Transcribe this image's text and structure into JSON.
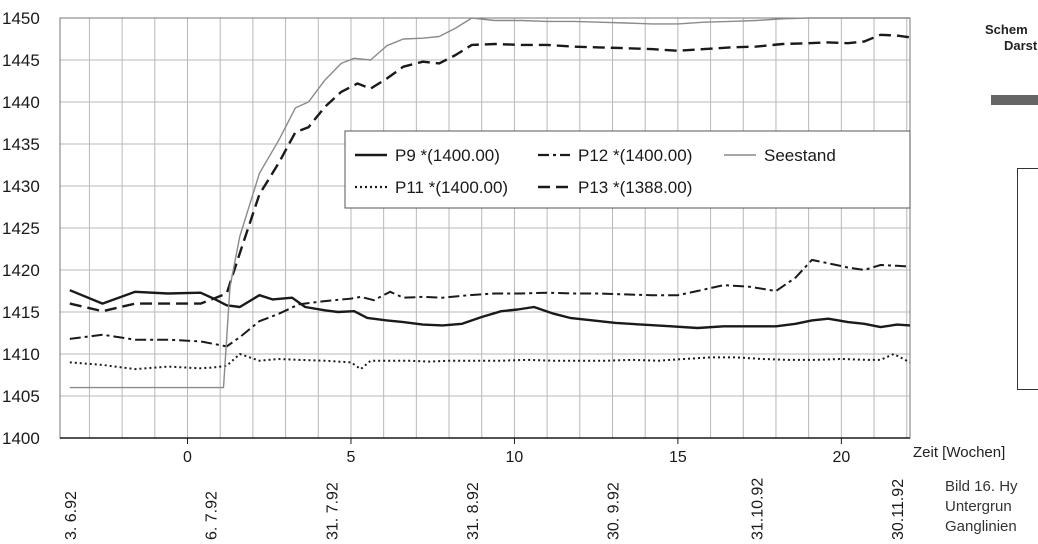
{
  "side_panel": {
    "heading_line1": "Schem",
    "heading_line2": "Darst",
    "time_axis_label": "Zeit [Wochen]",
    "caption_lines": [
      "Bild 16. Hy",
      "Untergrun",
      "Ganglinien"
    ]
  },
  "chart_data": {
    "type": "line",
    "title": "",
    "xlabel": "Zeit [Wochen]",
    "ylabel": "",
    "xlim": [
      -3.9,
      22.1
    ],
    "ylim": [
      1400,
      1450
    ],
    "x_ticks": [
      0,
      5,
      10,
      15,
      20
    ],
    "x_tick_labels": [
      "0",
      "5",
      "10",
      "15",
      "20"
    ],
    "y_ticks": [
      1400,
      1405,
      1410,
      1415,
      1420,
      1425,
      1430,
      1435,
      1440,
      1445,
      1450
    ],
    "y_tick_labels": [
      "1400",
      "1405",
      "1410",
      "1415",
      "1420",
      "1425",
      "1430",
      "1435",
      "1440",
      "1445",
      "1450"
    ],
    "grid": true,
    "legend_position": "center-right",
    "dates": [
      {
        "x": -3.6,
        "label": "3. 6.92"
      },
      {
        "x": 0.7,
        "label": "6. 7.92"
      },
      {
        "x": 4.4,
        "label": "31. 7.92"
      },
      {
        "x": 8.7,
        "label": "31. 8.92"
      },
      {
        "x": 13.0,
        "label": "30. 9.92"
      },
      {
        "x": 17.4,
        "label": "31.10.92"
      },
      {
        "x": 21.7,
        "label": "30.11.92"
      }
    ],
    "series": [
      {
        "name": "P9 *(1400.00)",
        "style": "solid",
        "color": "#1a1a1a",
        "x": [
          -3.6,
          -2.6,
          -1.6,
          -0.6,
          0.4,
          0.8,
          1.2,
          1.6,
          2.2,
          2.6,
          3.2,
          3.6,
          4.2,
          4.6,
          5.1,
          5.5,
          6.1,
          6.6,
          7.2,
          7.8,
          8.4,
          9.0,
          9.6,
          10.1,
          10.6,
          11.2,
          11.7,
          12.4,
          13.1,
          13.9,
          14.8,
          15.6,
          16.4,
          17.2,
          18.0,
          18.6,
          19.1,
          19.6,
          20.2,
          20.7,
          21.2,
          21.7,
          22.1
        ],
        "y": [
          1417.6,
          1416.0,
          1417.4,
          1417.2,
          1417.3,
          1416.6,
          1415.8,
          1415.6,
          1417.0,
          1416.5,
          1416.7,
          1415.6,
          1415.2,
          1415.0,
          1415.1,
          1414.3,
          1414.0,
          1413.8,
          1413.5,
          1413.4,
          1413.6,
          1414.4,
          1415.1,
          1415.3,
          1415.6,
          1414.8,
          1414.3,
          1414.0,
          1413.7,
          1413.5,
          1413.3,
          1413.1,
          1413.3,
          1413.3,
          1413.3,
          1413.6,
          1414.0,
          1414.2,
          1413.8,
          1413.6,
          1413.2,
          1413.5,
          1413.4
        ]
      },
      {
        "name": "P11 *(1400.00)",
        "style": "dotted",
        "color": "#1a1a1a",
        "x": [
          -3.6,
          -2.6,
          -1.6,
          -0.6,
          0.4,
          0.8,
          1.2,
          1.6,
          2.2,
          2.8,
          3.4,
          4.2,
          5.0,
          5.3,
          5.6,
          6.2,
          6.8,
          7.4,
          8.0,
          8.8,
          9.6,
          10.4,
          11.2,
          12.0,
          12.8,
          13.6,
          14.4,
          15.2,
          16.0,
          16.8,
          17.6,
          18.4,
          19.2,
          20.0,
          20.8,
          21.2,
          21.6,
          22.1
        ],
        "y": [
          1409.0,
          1408.7,
          1408.2,
          1408.5,
          1408.3,
          1408.4,
          1408.6,
          1410.0,
          1409.2,
          1409.4,
          1409.3,
          1409.2,
          1409.0,
          1408.2,
          1409.2,
          1409.2,
          1409.2,
          1409.1,
          1409.2,
          1409.2,
          1409.2,
          1409.3,
          1409.2,
          1409.2,
          1409.2,
          1409.3,
          1409.2,
          1409.4,
          1409.6,
          1409.6,
          1409.4,
          1409.3,
          1409.3,
          1409.4,
          1409.3,
          1409.3,
          1410.0,
          1409.0
        ]
      },
      {
        "name": "P12 *(1400.00)",
        "style": "dashdot",
        "color": "#1a1a1a",
        "x": [
          -3.6,
          -2.6,
          -1.6,
          -0.6,
          0.4,
          0.8,
          1.2,
          1.6,
          2.2,
          2.8,
          3.4,
          4.2,
          5.0,
          5.3,
          5.7,
          6.2,
          6.6,
          7.2,
          7.8,
          8.6,
          9.4,
          10.2,
          11.0,
          11.8,
          12.6,
          13.4,
          14.2,
          15.0,
          15.6,
          16.4,
          17.2,
          18.0,
          18.6,
          19.1,
          19.6,
          20.2,
          20.7,
          21.2,
          21.7,
          22.1
        ],
        "y": [
          1411.8,
          1412.3,
          1411.7,
          1411.7,
          1411.5,
          1411.2,
          1410.9,
          1412.0,
          1413.9,
          1414.8,
          1415.9,
          1416.3,
          1416.6,
          1416.8,
          1416.4,
          1417.4,
          1416.7,
          1416.8,
          1416.7,
          1417.0,
          1417.2,
          1417.2,
          1417.3,
          1417.2,
          1417.2,
          1417.1,
          1417.0,
          1417.0,
          1417.5,
          1418.2,
          1418.0,
          1417.5,
          1419.1,
          1421.2,
          1420.8,
          1420.3,
          1420.0,
          1420.6,
          1420.5,
          1420.4
        ]
      },
      {
        "name": "P13 *(1388.00)",
        "style": "dashed",
        "color": "#1a1a1a",
        "x": [
          -3.6,
          -2.6,
          -1.6,
          -0.6,
          0.4,
          0.8,
          1.2,
          1.6,
          2.2,
          2.8,
          3.3,
          3.7,
          4.2,
          4.7,
          5.2,
          5.6,
          6.1,
          6.6,
          7.2,
          7.7,
          8.2,
          8.7,
          9.4,
          10.2,
          11.0,
          11.8,
          12.6,
          13.4,
          14.2,
          15.0,
          15.8,
          16.6,
          17.4,
          18.2,
          19.0,
          19.6,
          20.2,
          20.7,
          21.2,
          21.7,
          22.1
        ],
        "y": [
          1416.0,
          1415.1,
          1416.0,
          1416.0,
          1416.0,
          1416.6,
          1417.2,
          1422.0,
          1429.0,
          1432.8,
          1436.4,
          1437.0,
          1439.4,
          1441.2,
          1442.2,
          1441.6,
          1442.8,
          1444.2,
          1444.8,
          1444.6,
          1445.6,
          1446.8,
          1446.9,
          1446.8,
          1446.8,
          1446.6,
          1446.5,
          1446.4,
          1446.3,
          1446.1,
          1446.3,
          1446.5,
          1446.6,
          1446.9,
          1447.0,
          1447.1,
          1447.0,
          1447.2,
          1448.0,
          1447.9,
          1447.7
        ]
      },
      {
        "name": "Seestand",
        "style": "thin",
        "color": "#8a8a8a",
        "x": [
          -3.6,
          -2.6,
          -1.6,
          -0.6,
          0.4,
          1.1,
          1.3,
          1.6,
          2.2,
          2.8,
          3.3,
          3.7,
          4.2,
          4.7,
          5.1,
          5.6,
          6.1,
          6.6,
          7.2,
          7.7,
          8.2,
          8.7,
          9.4,
          10.2,
          11.0,
          11.8,
          12.6,
          13.4,
          14.2,
          15.0,
          15.8,
          16.6,
          17.4,
          18.2,
          19.0,
          19.6,
          20.2,
          20.7,
          21.2,
          21.7,
          22.1
        ],
        "y": [
          1406.0,
          1406.0,
          1406.0,
          1406.0,
          1406.0,
          1406.0,
          1418.0,
          1424.0,
          1431.5,
          1435.5,
          1439.3,
          1440.0,
          1442.6,
          1444.6,
          1445.2,
          1445.0,
          1446.7,
          1447.5,
          1447.6,
          1447.8,
          1448.8,
          1450.0,
          1449.7,
          1449.7,
          1449.6,
          1449.6,
          1449.5,
          1449.4,
          1449.3,
          1449.3,
          1449.5,
          1449.6,
          1449.7,
          1449.9,
          1450.0,
          1450.0,
          1450.0,
          1450.0,
          1450.0,
          1450.0,
          1450.0
        ]
      }
    ],
    "legend_rows": [
      [
        0,
        2,
        4
      ],
      [
        1,
        3
      ]
    ]
  }
}
